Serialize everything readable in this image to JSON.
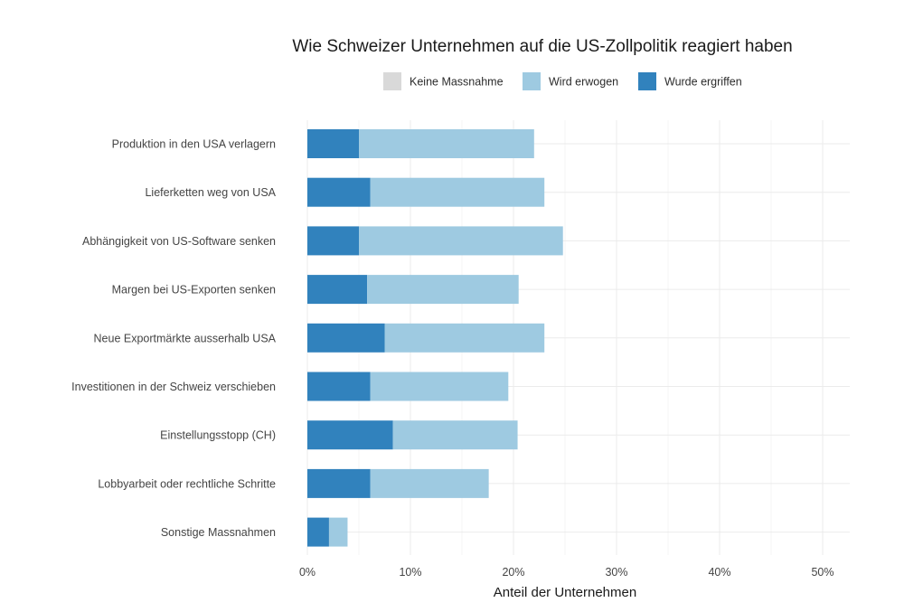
{
  "chart_data": {
    "type": "bar",
    "orientation": "horizontal",
    "stacked": true,
    "title": "Wie Schweizer Unternehmen auf die US-Zollpolitik reagiert haben",
    "xlabel": "Anteil der Unternehmen",
    "ylabel": "",
    "xlim": [
      0,
      0.525
    ],
    "x_ticks": [
      0,
      0.1,
      0.2,
      0.3,
      0.4,
      0.5
    ],
    "x_tick_labels": [
      "0%",
      "10%",
      "20%",
      "30%",
      "40%",
      "50%"
    ],
    "grid": true,
    "legend_position": "top",
    "categories": [
      "Produktion in den USA verlagern",
      "Lieferketten weg von USA",
      "Abhängigkeit von US-Software senken",
      "Margen bei US-Exporten senken",
      "Neue Exportmärkte ausserhalb USA",
      "Investitionen in der Schweiz verschieben",
      "Einstellungsstopp (CH)",
      "Lobbyarbeit oder rechtliche Schritte",
      "Sonstige Massnahmen"
    ],
    "series": [
      {
        "name": "Keine Massnahme",
        "color": "#d9d9d9",
        "values": [
          0,
          0,
          0,
          0,
          0,
          0,
          0,
          0,
          0
        ]
      },
      {
        "name": "Wird erwogen",
        "color": "#9ecae1",
        "values": [
          0.17,
          0.169,
          0.198,
          0.147,
          0.155,
          0.134,
          0.121,
          0.115,
          0.018
        ]
      },
      {
        "name": "Wurde ergriffen",
        "color": "#3182bd",
        "values": [
          0.05,
          0.061,
          0.05,
          0.058,
          0.075,
          0.061,
          0.083,
          0.061,
          0.021
        ]
      }
    ]
  }
}
